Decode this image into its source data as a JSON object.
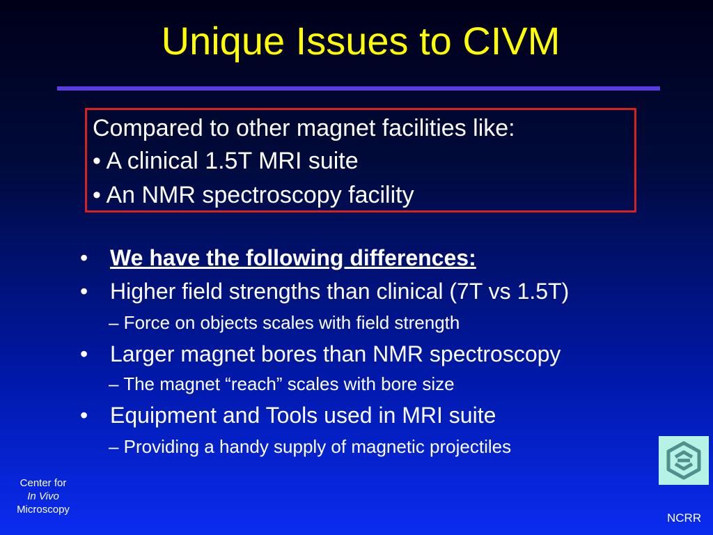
{
  "slide": {
    "title": "Unique Issues to CIVM",
    "box_lines": [
      "Compared to other magnet facilities like:",
      "• A clinical 1.5T MRI suite",
      "• An NMR spectroscopy facility"
    ],
    "bullets": [
      {
        "text": "We have the following differences:"
      },
      {
        "text": "Higher field strengths than clinical (7T vs 1.5T)",
        "sub": "– Force on objects scales with field strength"
      },
      {
        "text": "Larger magnet bores than NMR spectroscopy",
        "sub": "– The magnet “reach” scales with bore size"
      },
      {
        "text": "Equipment and Tools used in MRI suite",
        "sub": "– Providing a handy supply of magnetic projectiles"
      }
    ],
    "bullet_glyph": "•",
    "footer": {
      "left_line1": "Center for",
      "left_line2": "In Vivo",
      "left_line3": "Microscopy",
      "right": "NCRR",
      "logo_icon": "ncrr-logo-icon"
    },
    "colors": {
      "title": "#ffff00",
      "rule": "#5a3ce0",
      "box_border": "#d8201e",
      "text": "#ffffff",
      "logo_bg": "#b6f3e6"
    }
  }
}
